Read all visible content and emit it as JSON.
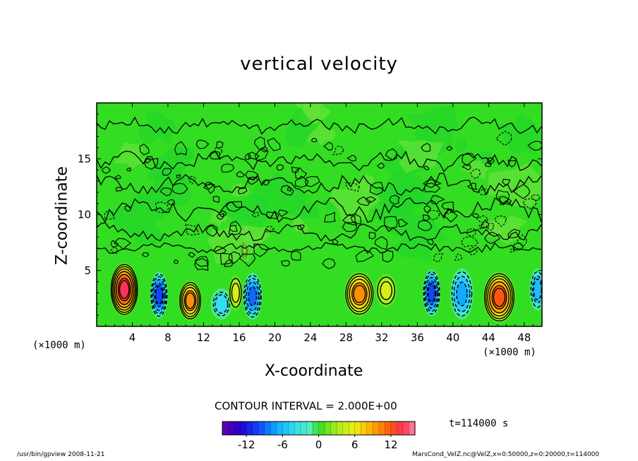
{
  "chart_data": {
    "type": "heatmap",
    "title": "vertical velocity",
    "xlabel": "X-coordinate",
    "ylabel": "Z-coordinate",
    "x_unit_label": "(×1000 m)",
    "y_unit_label": "(×1000 m)",
    "xlim": [
      0,
      50
    ],
    "ylim": [
      0,
      20
    ],
    "x_ticks": [
      4,
      8,
      12,
      16,
      20,
      24,
      28,
      32,
      36,
      40,
      44,
      48
    ],
    "y_ticks": [
      5,
      10,
      15
    ],
    "contour_interval_text": "CONTOUR INTERVAL = 2.000E+00",
    "colorbar": {
      "range": [
        -16,
        16
      ],
      "ticks": [
        -12,
        -6,
        0,
        6,
        12
      ]
    },
    "cells": [
      {
        "x": 3.1,
        "z": 3.3,
        "w": 14,
        "rx": 1.6,
        "rz": 2.4
      },
      {
        "x": 7.0,
        "z": 2.8,
        "w": -10,
        "rx": 1.0,
        "rz": 2.1
      },
      {
        "x": 10.5,
        "z": 2.3,
        "w": 10,
        "rx": 1.3,
        "rz": 1.8
      },
      {
        "x": 14.0,
        "z": 2.0,
        "w": -4,
        "rx": 1.2,
        "rz": 1.4
      },
      {
        "x": 15.6,
        "z": 3.0,
        "w": 5,
        "rx": 0.8,
        "rz": 1.6
      },
      {
        "x": 17.5,
        "z": 2.7,
        "w": -9,
        "rx": 1.1,
        "rz": 2.1
      },
      {
        "x": 16.6,
        "z": 6.8,
        "w": 6,
        "rx": 0.4,
        "rz": 0.9
      },
      {
        "x": 29.5,
        "z": 2.9,
        "w": 10,
        "rx": 1.7,
        "rz": 2.0
      },
      {
        "x": 32.5,
        "z": 3.2,
        "w": 5,
        "rx": 1.2,
        "rz": 1.5
      },
      {
        "x": 37.6,
        "z": 3.0,
        "w": -10,
        "rx": 1.0,
        "rz": 2.1
      },
      {
        "x": 41.0,
        "z": 2.9,
        "w": -7,
        "rx": 1.3,
        "rz": 2.3
      },
      {
        "x": 45.2,
        "z": 2.6,
        "w": 12,
        "rx": 1.8,
        "rz": 2.3
      },
      {
        "x": 49.5,
        "z": 3.3,
        "w": -6,
        "rx": 0.9,
        "rz": 1.9
      }
    ],
    "time_label": "t=114000 s"
  },
  "footer": {
    "left": "/usr/bin/gpview  2008-11-21",
    "right": "MarsCond_VelZ.nc@VelZ,x=0:50000,z=0:20000,t=114000"
  },
  "colors": {
    "background_field": "#33dd22",
    "min": "#6600aa",
    "max": "#ff88aa"
  }
}
